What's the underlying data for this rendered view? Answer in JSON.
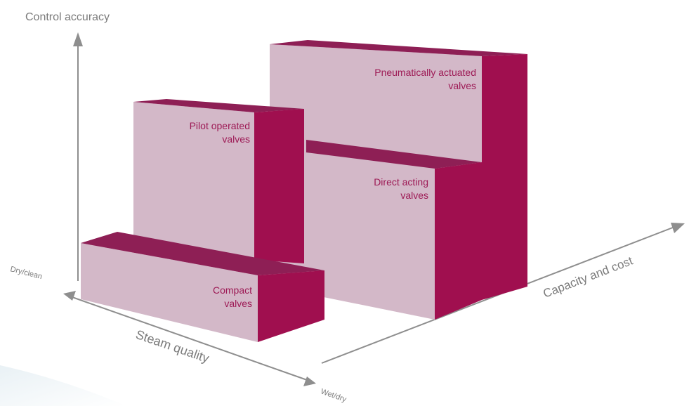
{
  "axes": {
    "vertical": "Control accuracy",
    "depth": "Capacity and cost",
    "horizontal": "Steam quality",
    "horizontal_left_end": "Dry/clean",
    "horizontal_right_end": "Wet/dry"
  },
  "blocks": {
    "pneumatic": {
      "line1": "Pneumatically actuated",
      "line2": "valves"
    },
    "pilot": {
      "line1": "Pilot operated",
      "line2": "valves"
    },
    "direct": {
      "line1": "Direct acting",
      "line2": "valves"
    },
    "compact": {
      "line1": "Compact",
      "line2": "valves"
    }
  },
  "colors": {
    "front_face": "#d3b8c8",
    "top_face": "#8e1f55",
    "side_face": "#a00f4f",
    "label_text": "#9d1a55",
    "axis": "#8e8e8e",
    "shadow": "#d8e6ec"
  }
}
